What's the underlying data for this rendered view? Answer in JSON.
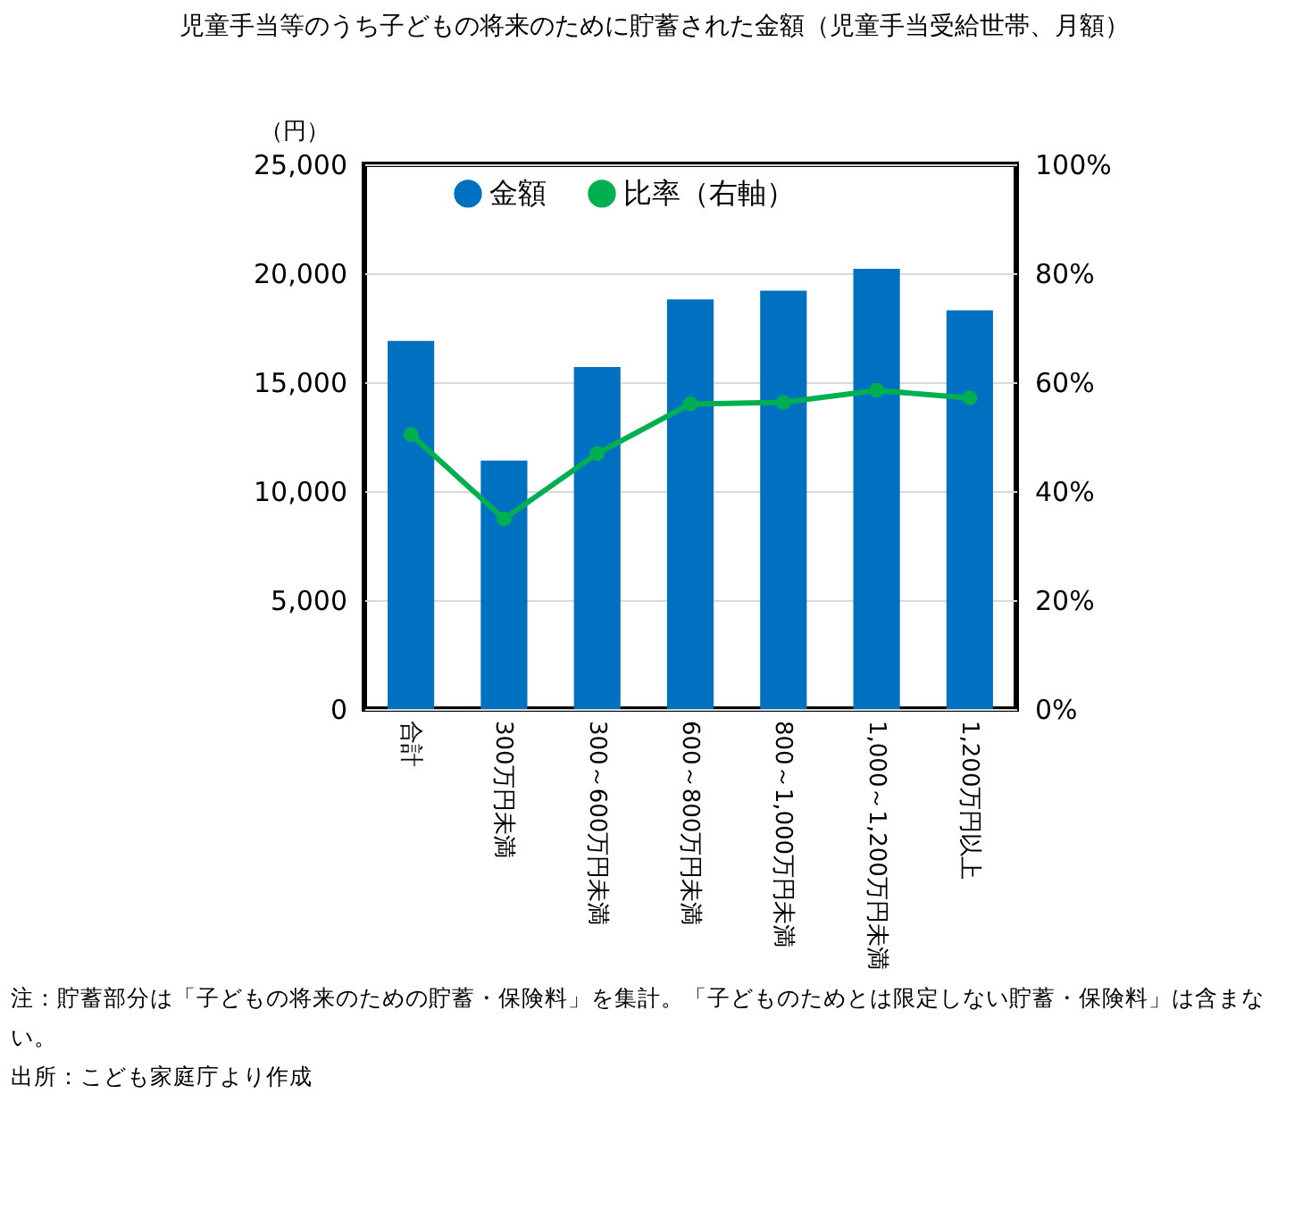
{
  "chart_data": {
    "type": "bar",
    "title": "児童手当等のうち子どもの将来のために貯蓄された金額（児童手当受給世帯、月額）",
    "ylabel": "（円）",
    "categories": [
      "合計",
      "300万円未満",
      "300～600万円未満",
      "600～800万円未満",
      "800～1,000万円未満",
      "1,000～1,200万円未満",
      "1,200万円以上"
    ],
    "series": [
      {
        "name": "金額",
        "color": "#0070c0",
        "values": [
          16900,
          11400,
          15700,
          18800,
          19200,
          20200,
          18300
        ]
      },
      {
        "name": "比率（右軸）",
        "type": "line",
        "axis": "y2",
        "color": "#00b050",
        "values": [
          50.4,
          34.9,
          46.9,
          56.0,
          56.3,
          58.5,
          57.1
        ]
      }
    ],
    "ylim": [
      0,
      25000
    ],
    "yticks": [
      {
        "value": 0,
        "label": "0"
      },
      {
        "value": 5000,
        "label": "5,000"
      },
      {
        "value": 10000,
        "label": "10,000"
      },
      {
        "value": 15000,
        "label": "15,000"
      },
      {
        "value": 20000,
        "label": "20,000"
      },
      {
        "value": 25000,
        "label": "25,000"
      }
    ],
    "y2lim": [
      0,
      100
    ],
    "y2ticks": [
      {
        "value": 0,
        "label": "0%"
      },
      {
        "value": 20,
        "label": "20%"
      },
      {
        "value": 40,
        "label": "40%"
      },
      {
        "value": 60,
        "label": "60%"
      },
      {
        "value": 80,
        "label": "80%"
      },
      {
        "value": 100,
        "label": "100%"
      }
    ],
    "grid": "y",
    "legend": "top",
    "marker": "circle",
    "line_style": "solid",
    "annotations": [
      "注：貯蓄部分は「子どもの将来のための貯蓄・保険料」を集計。「子どものためとは限定しない貯蓄・保険料」は含まない。",
      "出所：こども家庭庁より作成"
    ]
  }
}
